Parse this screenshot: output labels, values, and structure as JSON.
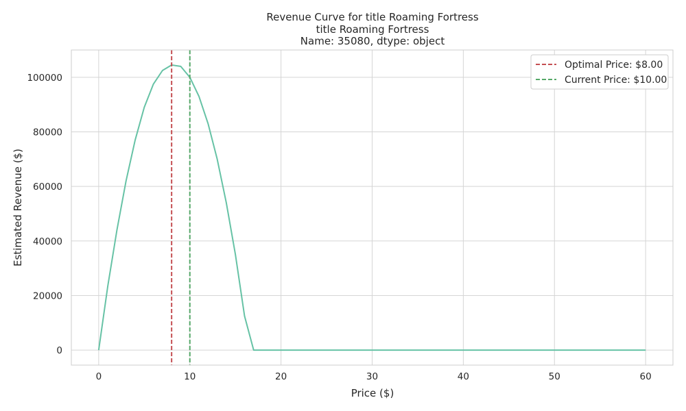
{
  "chart_data": {
    "type": "line",
    "title_lines": [
      "Revenue Curve for title    Roaming Fortress",
      "title    Roaming Fortress",
      "Name: 35080, dtype: object"
    ],
    "xlabel": "Price ($)",
    "ylabel": "Estimated Revenue ($)",
    "xlim": [
      -3,
      63
    ],
    "ylim": [
      -5500,
      110000
    ],
    "xticks": [
      0,
      10,
      20,
      30,
      40,
      50,
      60
    ],
    "yticks": [
      0,
      20000,
      40000,
      60000,
      80000,
      100000
    ],
    "grid": true,
    "legend_position": "top-right",
    "series": [
      {
        "color": "#66c2a5",
        "x": [
          0,
          1,
          2,
          3,
          4,
          5,
          6,
          7,
          8,
          9,
          10,
          11,
          12,
          13,
          14,
          15,
          16,
          17,
          18,
          19,
          20,
          21,
          22,
          23,
          24,
          25,
          26,
          27,
          28,
          29,
          30,
          31,
          32,
          33,
          34,
          35,
          36,
          37,
          38,
          39,
          40,
          41,
          42,
          43,
          44,
          45,
          46,
          47,
          48,
          49,
          50,
          51,
          52,
          53,
          54,
          55,
          56,
          57,
          58,
          59,
          60
        ],
        "y": [
          0,
          23500,
          44000,
          62000,
          77000,
          89000,
          97500,
          102500,
          104500,
          104000,
          100000,
          93000,
          83000,
          70000,
          54000,
          35000,
          12500,
          0,
          0,
          0,
          0,
          0,
          0,
          0,
          0,
          0,
          0,
          0,
          0,
          0,
          0,
          0,
          0,
          0,
          0,
          0,
          0,
          0,
          0,
          0,
          0,
          0,
          0,
          0,
          0,
          0,
          0,
          0,
          0,
          0,
          0,
          0,
          0,
          0,
          0,
          0,
          0,
          0,
          0,
          0,
          0
        ]
      }
    ],
    "reference_lines": [
      {
        "label": "Optimal Price: $8.00",
        "x": 8,
        "color": "#c44e52"
      },
      {
        "label": "Current Price: $10.00",
        "x": 10,
        "color": "#55a868"
      }
    ]
  }
}
